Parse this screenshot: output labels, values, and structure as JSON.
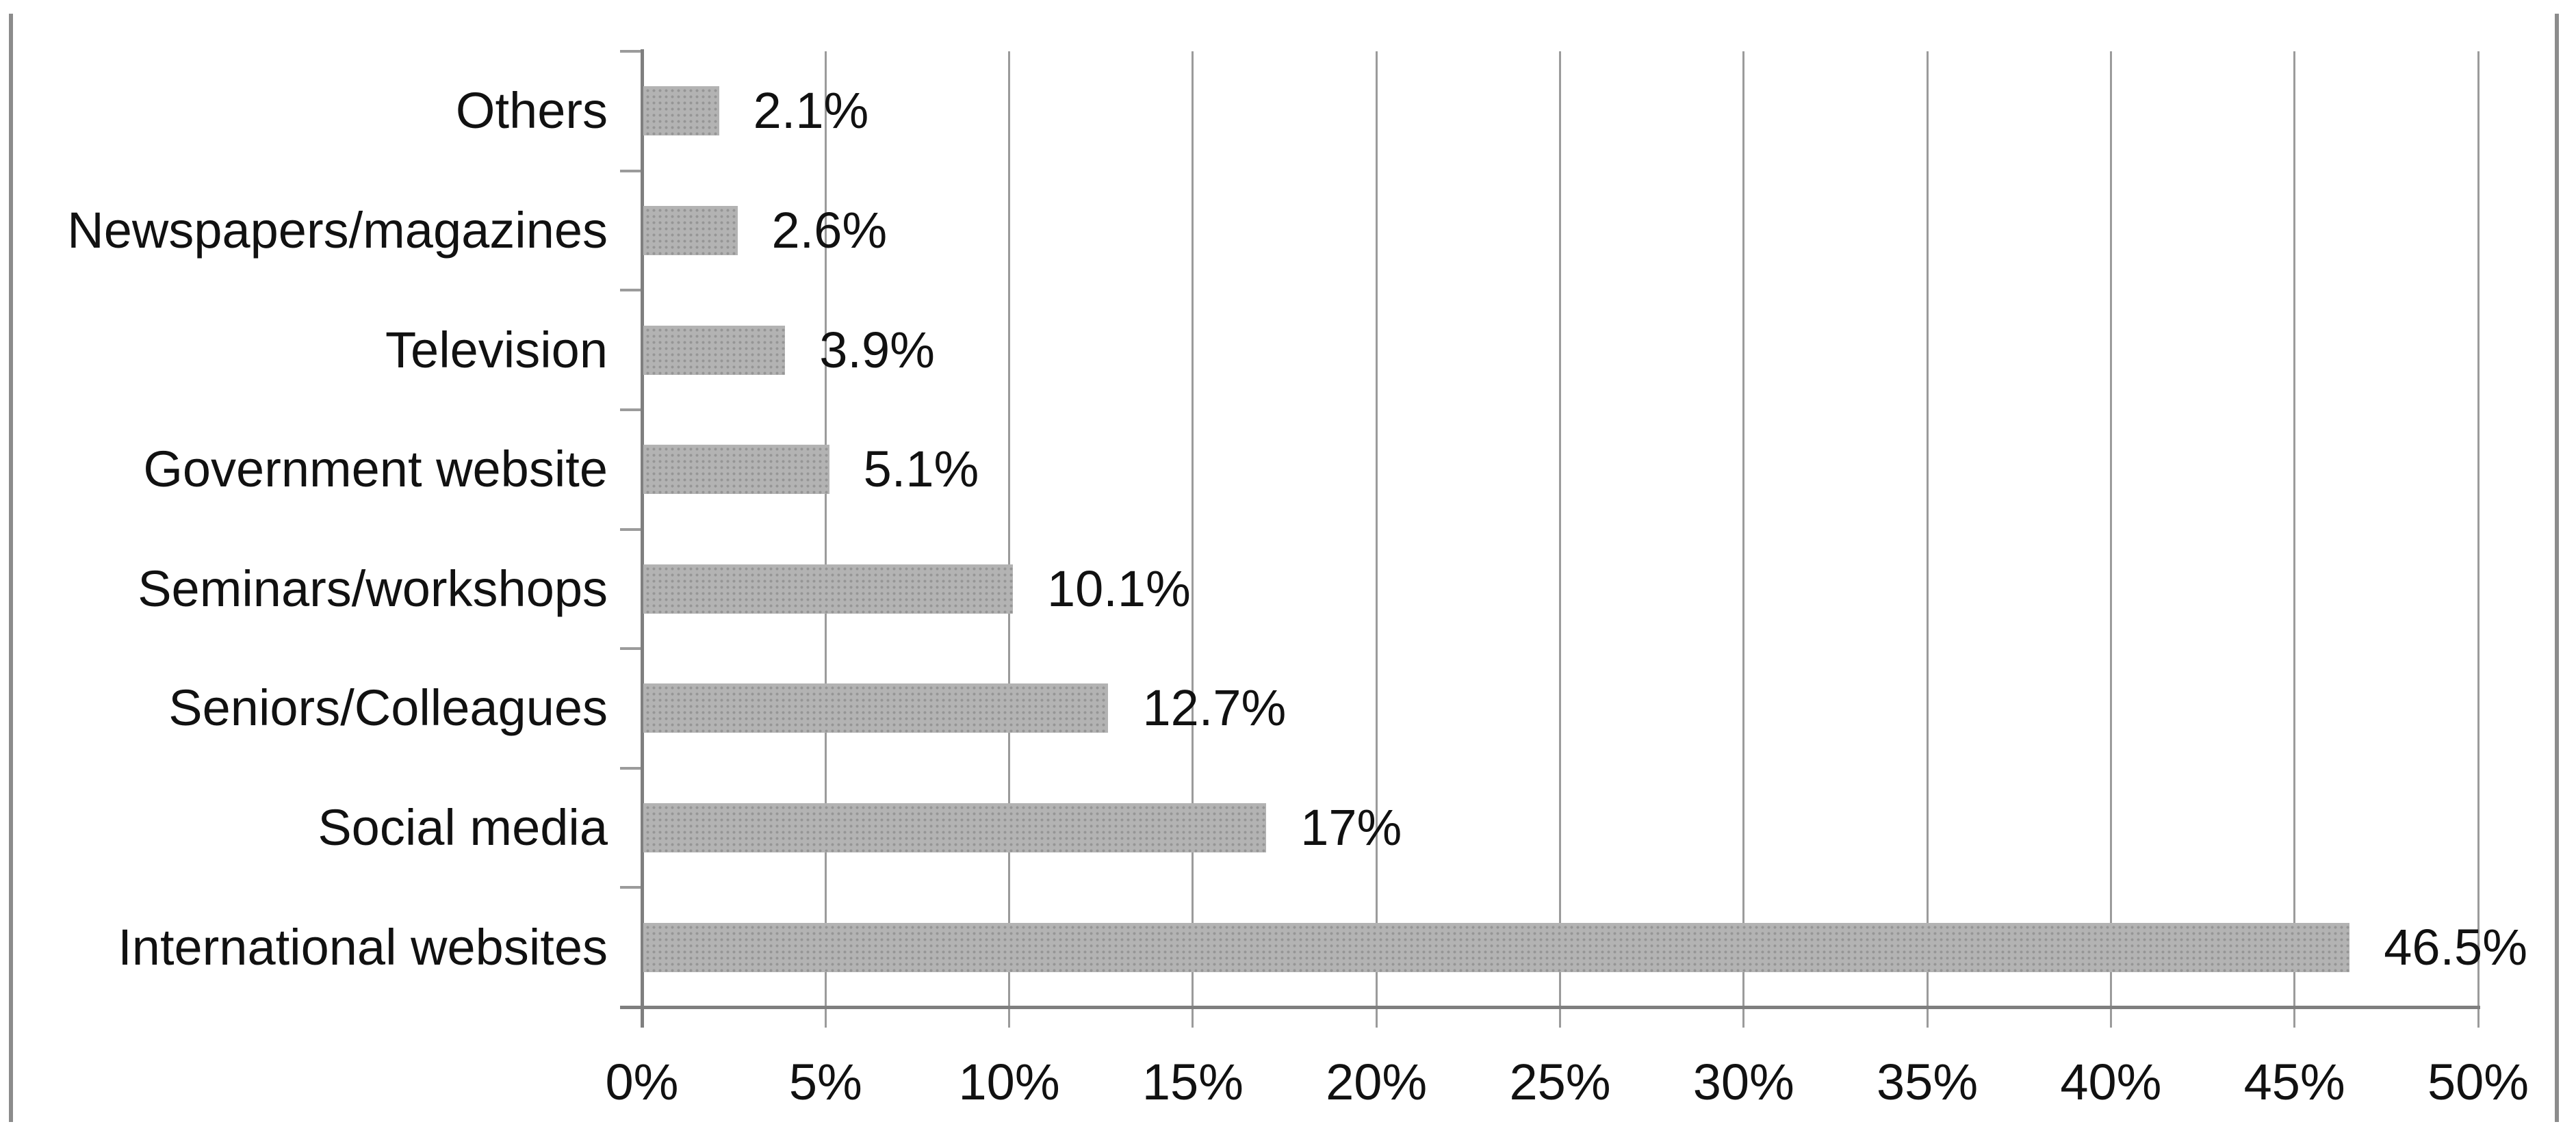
{
  "figure": {
    "description": "horizontal bar chart, grayscale, dotted-pattern bars"
  },
  "chart_data": {
    "type": "bar",
    "orientation": "horizontal",
    "title": "",
    "xlabel": "",
    "ylabel": "",
    "categories": [
      "Others",
      "Newspapers/magazines",
      "Television",
      "Government website",
      "Seminars/workshops",
      "Seniors/Colleagues",
      "Social media",
      "International websites"
    ],
    "values": [
      2.1,
      2.6,
      3.9,
      5.1,
      10.1,
      12.7,
      17,
      46.5
    ],
    "value_labels": [
      "2.1%",
      "2.6%",
      "3.9%",
      "5.1%",
      "10.1%",
      "12.7%",
      "17%",
      "46.5%"
    ],
    "xlim": [
      0,
      50
    ],
    "x_tick_step": 5,
    "x_tick_labels": [
      "0%",
      "5%",
      "10%",
      "15%",
      "20%",
      "25%",
      "30%",
      "35%",
      "40%",
      "45%",
      "50%"
    ],
    "grid": "vertical-gridlines-on",
    "legend": "none",
    "colors": {
      "bar_fill": "#b3b3b3",
      "bar_dot": "#959595",
      "gridline": "#9b9b9b",
      "axis": "#7f7f7f",
      "text": "#111111",
      "outer_border": "#8c8c8c",
      "background": "#ffffff"
    }
  }
}
